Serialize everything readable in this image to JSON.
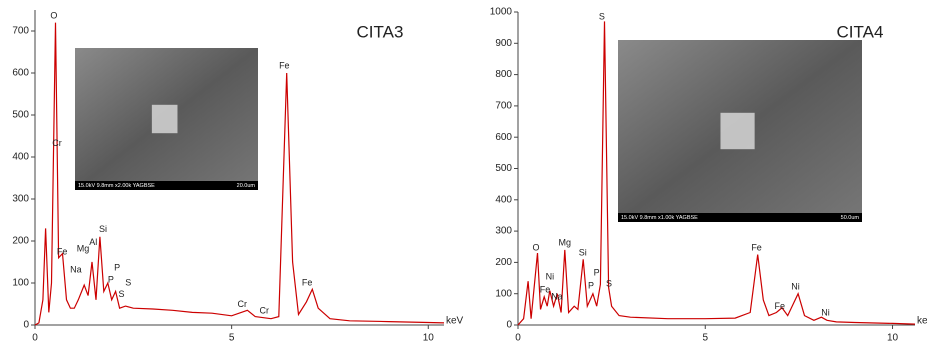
{
  "chart_data": [
    {
      "type": "line",
      "title": "CITA3",
      "xlabel": "keV",
      "inset_caption": "15.0kV 9.8mm x2.00k YAGBSE",
      "inset_scale": "20.0um",
      "x": [
        0,
        0.1,
        0.2,
        0.27,
        0.35,
        0.42,
        0.52,
        0.6,
        0.7,
        0.8,
        0.9,
        1.0,
        1.1,
        1.25,
        1.35,
        1.45,
        1.55,
        1.65,
        1.75,
        1.85,
        1.95,
        2.05,
        2.15,
        2.3,
        2.5,
        3,
        3.5,
        4,
        4.5,
        5,
        5.4,
        5.6,
        6,
        6.2,
        6.4,
        6.55,
        6.7,
        6.9,
        7.05,
        7.2,
        7.5,
        8,
        9,
        10,
        10.4
      ],
      "series": [
        {
          "color": "#cc0000",
          "values": [
            0,
            5,
            60,
            230,
            30,
            100,
            720,
            160,
            170,
            60,
            40,
            40,
            60,
            95,
            70,
            150,
            60,
            210,
            80,
            100,
            60,
            80,
            40,
            45,
            40,
            38,
            35,
            30,
            28,
            22,
            35,
            20,
            15,
            20,
            600,
            150,
            25,
            55,
            85,
            40,
            15,
            10,
            8,
            6,
            5
          ]
        }
      ],
      "xlim": [
        0,
        10.4
      ],
      "ylim": [
        0,
        750
      ],
      "xticks": [
        0,
        5,
        10
      ],
      "yticks": [
        0,
        100,
        200,
        300,
        400,
        500,
        600,
        700
      ],
      "annotations": [
        {
          "text": "O",
          "x": 0.48,
          "y": 735
        },
        {
          "text": "Cr",
          "x": 0.56,
          "y": 432
        },
        {
          "text": "Fe",
          "x": 0.69,
          "y": 174
        },
        {
          "text": "Na",
          "x": 1.04,
          "y": 131
        },
        {
          "text": "Mg",
          "x": 1.22,
          "y": 181
        },
        {
          "text": "Al",
          "x": 1.48,
          "y": 196
        },
        {
          "text": "Si",
          "x": 1.73,
          "y": 227
        },
        {
          "text": "P",
          "x": 2.09,
          "y": 136
        },
        {
          "text": "P",
          "x": 1.93,
          "y": 107
        },
        {
          "text": "S",
          "x": 2.37,
          "y": 100
        },
        {
          "text": "S",
          "x": 2.2,
          "y": 72
        },
        {
          "text": "Cr",
          "x": 5.27,
          "y": 48
        },
        {
          "text": "Cr",
          "x": 5.83,
          "y": 33
        },
        {
          "text": "Fe",
          "x": 6.34,
          "y": 616
        },
        {
          "text": "Fe",
          "x": 6.92,
          "y": 100
        }
      ]
    },
    {
      "type": "line",
      "title": "CITA4",
      "xlabel": "keV",
      "inset_caption": "15.0kV 9.8mm x1.00k YAGBSE",
      "inset_scale": "50.0um",
      "x": [
        0,
        0.15,
        0.27,
        0.35,
        0.52,
        0.6,
        0.7,
        0.78,
        0.85,
        0.95,
        1.05,
        1.15,
        1.25,
        1.35,
        1.5,
        1.6,
        1.74,
        1.85,
        2.0,
        2.1,
        2.2,
        2.31,
        2.42,
        2.5,
        2.7,
        3,
        4,
        5,
        5.8,
        6.2,
        6.4,
        6.55,
        6.7,
        6.9,
        7.05,
        7.2,
        7.48,
        7.65,
        7.9,
        8.1,
        8.25,
        8.5,
        9,
        10,
        10.6
      ],
      "series": [
        {
          "color": "#cc0000",
          "values": [
            0,
            20,
            140,
            20,
            230,
            50,
            90,
            60,
            110,
            60,
            100,
            40,
            240,
            40,
            60,
            50,
            210,
            60,
            100,
            60,
            130,
            970,
            120,
            60,
            30,
            25,
            20,
            20,
            22,
            40,
            225,
            80,
            30,
            40,
            55,
            30,
            100,
            30,
            15,
            25,
            15,
            10,
            8,
            5,
            3
          ]
        }
      ],
      "xlim": [
        0,
        10.6
      ],
      "ylim": [
        0,
        1000
      ],
      "xticks": [
        0,
        5,
        10
      ],
      "yticks": [
        0,
        100,
        200,
        300,
        400,
        500,
        600,
        700,
        800,
        900,
        1000
      ],
      "annotations": [
        {
          "text": "O",
          "x": 0.48,
          "y": 246
        },
        {
          "text": "Mg",
          "x": 1.25,
          "y": 262
        },
        {
          "text": "Si",
          "x": 1.73,
          "y": 230
        },
        {
          "text": "S",
          "x": 2.24,
          "y": 984
        },
        {
          "text": "P",
          "x": 2.1,
          "y": 166
        },
        {
          "text": "P",
          "x": 1.95,
          "y": 125
        },
        {
          "text": "S",
          "x": 2.43,
          "y": 131
        },
        {
          "text": "Ni",
          "x": 0.85,
          "y": 153
        },
        {
          "text": "Fe",
          "x": 0.72,
          "y": 112
        },
        {
          "text": "Na",
          "x": 1.04,
          "y": 89
        },
        {
          "text": "Fe",
          "x": 6.37,
          "y": 246
        },
        {
          "text": "Fe",
          "x": 6.99,
          "y": 58
        },
        {
          "text": "Ni",
          "x": 7.41,
          "y": 121
        },
        {
          "text": "Ni",
          "x": 8.21,
          "y": 38
        }
      ]
    }
  ]
}
